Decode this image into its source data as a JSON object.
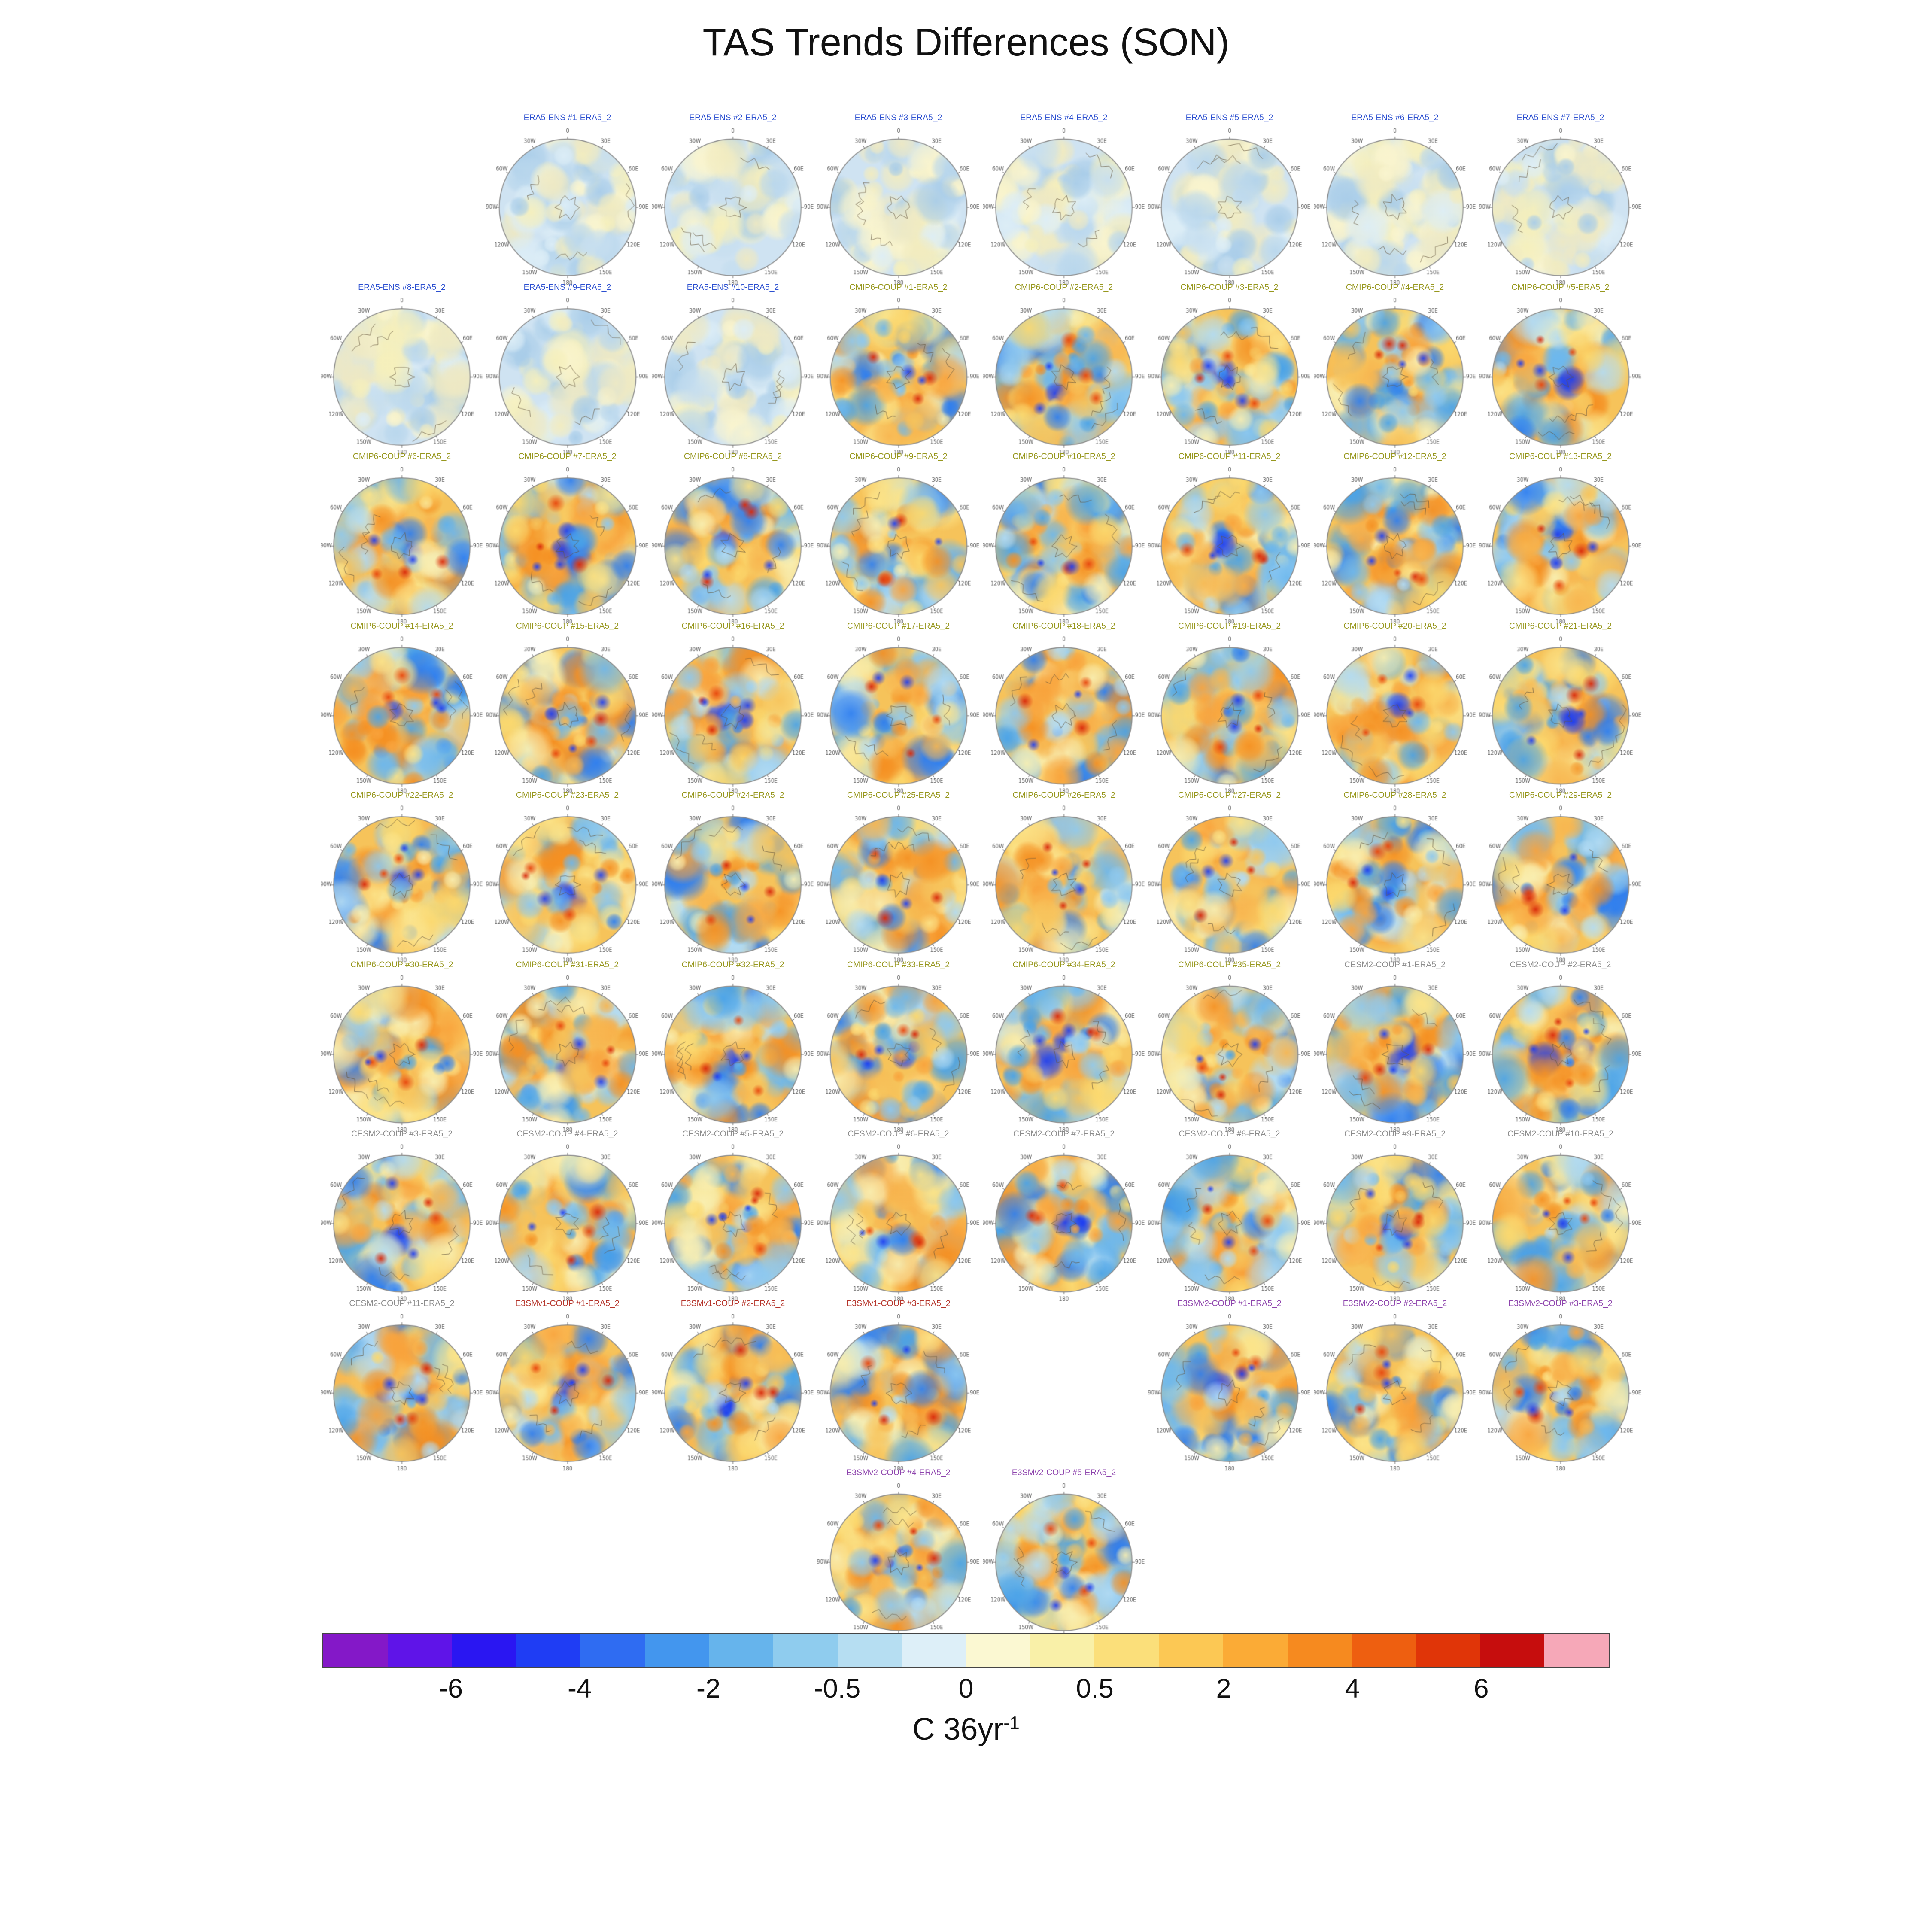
{
  "title": "TAS Trends Differences (SON)",
  "chart_data": {
    "type": "heatmap",
    "title": "TAS Trends Differences (SON)",
    "season": "SON",
    "projection": "south polar stereographic",
    "colorbar": {
      "ticks": [
        "-6",
        "-4",
        "-2",
        "-0.5",
        "0",
        "0.5",
        "2",
        "4",
        "6"
      ],
      "unit_label": "C 36yr",
      "unit_exponent": "-1",
      "colors": [
        "#8418c8",
        "#5f14e8",
        "#2a16f2",
        "#1f3df4",
        "#2f6cf2",
        "#4396ee",
        "#66b4ec",
        "#8fccee",
        "#b6def2",
        "#ddeff8",
        "#fbf8d2",
        "#f9f0a8",
        "#fbdf7a",
        "#fcc854",
        "#fbab36",
        "#f68a1f",
        "#ee5f10",
        "#e03508",
        "#c60d0d",
        "#f6a8b8"
      ]
    },
    "panel_ticks": [
      "0",
      "30E",
      "60E",
      "90E",
      "120E",
      "150E",
      "180",
      "150W",
      "120W",
      "90W",
      "60W",
      "30W"
    ],
    "groups": {
      "ERA5-ENS": {
        "color": "#2b4fd0",
        "style": "muted"
      },
      "CMIP6-COUP": {
        "color": "#97971d",
        "style": "vivid"
      },
      "CESM2-COUP": {
        "color": "#8c8c8c",
        "style": "vivid"
      },
      "E3SMv1-COUP": {
        "color": "#b5342a",
        "style": "vivid"
      },
      "E3SMv2-COUP": {
        "color": "#8e44ad",
        "style": "vivid"
      }
    },
    "panels": [
      {
        "label": "ERA5-ENS #1-ERA5_2",
        "group": "ERA5-ENS",
        "row": 1,
        "col": 2
      },
      {
        "label": "ERA5-ENS #2-ERA5_2",
        "group": "ERA5-ENS",
        "row": 1,
        "col": 3
      },
      {
        "label": "ERA5-ENS #3-ERA5_2",
        "group": "ERA5-ENS",
        "row": 1,
        "col": 4
      },
      {
        "label": "ERA5-ENS #4-ERA5_2",
        "group": "ERA5-ENS",
        "row": 1,
        "col": 5
      },
      {
        "label": "ERA5-ENS #5-ERA5_2",
        "group": "ERA5-ENS",
        "row": 1,
        "col": 6
      },
      {
        "label": "ERA5-ENS #6-ERA5_2",
        "group": "ERA5-ENS",
        "row": 1,
        "col": 7
      },
      {
        "label": "ERA5-ENS #7-ERA5_2",
        "group": "ERA5-ENS",
        "row": 1,
        "col": 8
      },
      {
        "label": "ERA5-ENS #8-ERA5_2",
        "group": "ERA5-ENS",
        "row": 2,
        "col": 1
      },
      {
        "label": "ERA5-ENS #9-ERA5_2",
        "group": "ERA5-ENS",
        "row": 2,
        "col": 2
      },
      {
        "label": "ERA5-ENS #10-ERA5_2",
        "group": "ERA5-ENS",
        "row": 2,
        "col": 3
      },
      {
        "label": "CMIP6-COUP #1-ERA5_2",
        "group": "CMIP6-COUP",
        "row": 2,
        "col": 4
      },
      {
        "label": "CMIP6-COUP #2-ERA5_2",
        "group": "CMIP6-COUP",
        "row": 2,
        "col": 5
      },
      {
        "label": "CMIP6-COUP #3-ERA5_2",
        "group": "CMIP6-COUP",
        "row": 2,
        "col": 6
      },
      {
        "label": "CMIP6-COUP #4-ERA5_2",
        "group": "CMIP6-COUP",
        "row": 2,
        "col": 7
      },
      {
        "label": "CMIP6-COUP #5-ERA5_2",
        "group": "CMIP6-COUP",
        "row": 2,
        "col": 8
      },
      {
        "label": "CMIP6-COUP #6-ERA5_2",
        "group": "CMIP6-COUP",
        "row": 3,
        "col": 1
      },
      {
        "label": "CMIP6-COUP #7-ERA5_2",
        "group": "CMIP6-COUP",
        "row": 3,
        "col": 2
      },
      {
        "label": "CMIP6-COUP #8-ERA5_2",
        "group": "CMIP6-COUP",
        "row": 3,
        "col": 3
      },
      {
        "label": "CMIP6-COUP #9-ERA5_2",
        "group": "CMIP6-COUP",
        "row": 3,
        "col": 4
      },
      {
        "label": "CMIP6-COUP #10-ERA5_2",
        "group": "CMIP6-COUP",
        "row": 3,
        "col": 5
      },
      {
        "label": "CMIP6-COUP #11-ERA5_2",
        "group": "CMIP6-COUP",
        "row": 3,
        "col": 6
      },
      {
        "label": "CMIP6-COUP #12-ERA5_2",
        "group": "CMIP6-COUP",
        "row": 3,
        "col": 7
      },
      {
        "label": "CMIP6-COUP #13-ERA5_2",
        "group": "CMIP6-COUP",
        "row": 3,
        "col": 8
      },
      {
        "label": "CMIP6-COUP #14-ERA5_2",
        "group": "CMIP6-COUP",
        "row": 4,
        "col": 1
      },
      {
        "label": "CMIP6-COUP #15-ERA5_2",
        "group": "CMIP6-COUP",
        "row": 4,
        "col": 2
      },
      {
        "label": "CMIP6-COUP #16-ERA5_2",
        "group": "CMIP6-COUP",
        "row": 4,
        "col": 3
      },
      {
        "label": "CMIP6-COUP #17-ERA5_2",
        "group": "CMIP6-COUP",
        "row": 4,
        "col": 4
      },
      {
        "label": "CMIP6-COUP #18-ERA5_2",
        "group": "CMIP6-COUP",
        "row": 4,
        "col": 5
      },
      {
        "label": "CMIP6-COUP #19-ERA5_2",
        "group": "CMIP6-COUP",
        "row": 4,
        "col": 6
      },
      {
        "label": "CMIP6-COUP #20-ERA5_2",
        "group": "CMIP6-COUP",
        "row": 4,
        "col": 7
      },
      {
        "label": "CMIP6-COUP #21-ERA5_2",
        "group": "CMIP6-COUP",
        "row": 4,
        "col": 8
      },
      {
        "label": "CMIP6-COUP #22-ERA5_2",
        "group": "CMIP6-COUP",
        "row": 5,
        "col": 1
      },
      {
        "label": "CMIP6-COUP #23-ERA5_2",
        "group": "CMIP6-COUP",
        "row": 5,
        "col": 2
      },
      {
        "label": "CMIP6-COUP #24-ERA5_2",
        "group": "CMIP6-COUP",
        "row": 5,
        "col": 3
      },
      {
        "label": "CMIP6-COUP #25-ERA5_2",
        "group": "CMIP6-COUP",
        "row": 5,
        "col": 4
      },
      {
        "label": "CMIP6-COUP #26-ERA5_2",
        "group": "CMIP6-COUP",
        "row": 5,
        "col": 5
      },
      {
        "label": "CMIP6-COUP #27-ERA5_2",
        "group": "CMIP6-COUP",
        "row": 5,
        "col": 6
      },
      {
        "label": "CMIP6-COUP #28-ERA5_2",
        "group": "CMIP6-COUP",
        "row": 5,
        "col": 7
      },
      {
        "label": "CMIP6-COUP #29-ERA5_2",
        "group": "CMIP6-COUP",
        "row": 5,
        "col": 8
      },
      {
        "label": "CMIP6-COUP #30-ERA5_2",
        "group": "CMIP6-COUP",
        "row": 6,
        "col": 1
      },
      {
        "label": "CMIP6-COUP #31-ERA5_2",
        "group": "CMIP6-COUP",
        "row": 6,
        "col": 2
      },
      {
        "label": "CMIP6-COUP #32-ERA5_2",
        "group": "CMIP6-COUP",
        "row": 6,
        "col": 3
      },
      {
        "label": "CMIP6-COUP #33-ERA5_2",
        "group": "CMIP6-COUP",
        "row": 6,
        "col": 4
      },
      {
        "label": "CMIP6-COUP #34-ERA5_2",
        "group": "CMIP6-COUP",
        "row": 6,
        "col": 5
      },
      {
        "label": "CMIP6-COUP #35-ERA5_2",
        "group": "CMIP6-COUP",
        "row": 6,
        "col": 6
      },
      {
        "label": "CESM2-COUP #1-ERA5_2",
        "group": "CESM2-COUP",
        "row": 6,
        "col": 7
      },
      {
        "label": "CESM2-COUP #2-ERA5_2",
        "group": "CESM2-COUP",
        "row": 6,
        "col": 8
      },
      {
        "label": "CESM2-COUP #3-ERA5_2",
        "group": "CESM2-COUP",
        "row": 7,
        "col": 1
      },
      {
        "label": "CESM2-COUP #4-ERA5_2",
        "group": "CESM2-COUP",
        "row": 7,
        "col": 2
      },
      {
        "label": "CESM2-COUP #5-ERA5_2",
        "group": "CESM2-COUP",
        "row": 7,
        "col": 3
      },
      {
        "label": "CESM2-COUP #6-ERA5_2",
        "group": "CESM2-COUP",
        "row": 7,
        "col": 4
      },
      {
        "label": "CESM2-COUP #7-ERA5_2",
        "group": "CESM2-COUP",
        "row": 7,
        "col": 5
      },
      {
        "label": "CESM2-COUP #8-ERA5_2",
        "group": "CESM2-COUP",
        "row": 7,
        "col": 6
      },
      {
        "label": "CESM2-COUP #9-ERA5_2",
        "group": "CESM2-COUP",
        "row": 7,
        "col": 7
      },
      {
        "label": "CESM2-COUP #10-ERA5_2",
        "group": "CESM2-COUP",
        "row": 7,
        "col": 8
      },
      {
        "label": "CESM2-COUP #11-ERA5_2",
        "group": "CESM2-COUP",
        "row": 8,
        "col": 1
      },
      {
        "label": "E3SMv1-COUP #1-ERA5_2",
        "group": "E3SMv1-COUP",
        "row": 8,
        "col": 2
      },
      {
        "label": "E3SMv1-COUP #2-ERA5_2",
        "group": "E3SMv1-COUP",
        "row": 8,
        "col": 3
      },
      {
        "label": "E3SMv1-COUP #3-ERA5_2",
        "group": "E3SMv1-COUP",
        "row": 8,
        "col": 4
      },
      {
        "label": "E3SMv2-COUP #1-ERA5_2",
        "group": "E3SMv2-COUP",
        "row": 8,
        "col": 6
      },
      {
        "label": "E3SMv2-COUP #2-ERA5_2",
        "group": "E3SMv2-COUP",
        "row": 8,
        "col": 7
      },
      {
        "label": "E3SMv2-COUP #3-ERA5_2",
        "group": "E3SMv2-COUP",
        "row": 8,
        "col": 8
      },
      {
        "label": "E3SMv2-COUP #4-ERA5_2",
        "group": "E3SMv2-COUP",
        "row": 9,
        "col": 4
      },
      {
        "label": "E3SMv2-COUP #5-ERA5_2",
        "group": "E3SMv2-COUP",
        "row": 9,
        "col": 5
      }
    ]
  }
}
